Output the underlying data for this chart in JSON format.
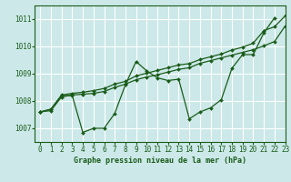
{
  "title": "Graphe pression niveau de la mer (hPa)",
  "xlim": [
    -0.5,
    23
  ],
  "ylim": [
    1006.5,
    1011.5
  ],
  "yticks": [
    1007,
    1008,
    1009,
    1010,
    1011
  ],
  "xticks": [
    0,
    1,
    2,
    3,
    4,
    5,
    6,
    7,
    8,
    9,
    10,
    11,
    12,
    13,
    14,
    15,
    16,
    17,
    18,
    19,
    20,
    21,
    22,
    23
  ],
  "bg_color": "#cce8e8",
  "grid_color": "#ffffff",
  "line_color": "#1a5c1a",
  "s1_x": [
    0,
    1,
    2,
    3,
    4,
    5,
    6,
    7,
    8,
    9,
    10,
    11,
    12,
    13,
    14,
    15,
    16,
    17,
    18,
    19,
    20,
    21,
    22
  ],
  "s1_y": [
    1007.6,
    1007.7,
    1008.2,
    1008.2,
    1006.85,
    1007.0,
    1007.0,
    1007.55,
    1008.6,
    1009.45,
    1009.1,
    1008.85,
    1008.75,
    1008.8,
    1007.35,
    1007.6,
    1007.75,
    1008.05,
    1009.2,
    1009.7,
    1009.7,
    1010.5,
    1011.05
  ],
  "s2_x": [
    0,
    1,
    2,
    3,
    4,
    5,
    6,
    7,
    8,
    9,
    10,
    11,
    12,
    13,
    14,
    15,
    16,
    17,
    18,
    19,
    20,
    21,
    22,
    23
  ],
  "s2_y": [
    1007.6,
    1007.65,
    1008.15,
    1008.22,
    1008.25,
    1008.28,
    1008.35,
    1008.5,
    1008.62,
    1008.78,
    1008.88,
    1008.96,
    1009.06,
    1009.16,
    1009.22,
    1009.38,
    1009.48,
    1009.58,
    1009.68,
    1009.78,
    1009.88,
    1010.02,
    1010.18,
    1010.75
  ],
  "s3_x": [
    0,
    1,
    2,
    3,
    4,
    5,
    6,
    7,
    8,
    9,
    10,
    11,
    12,
    13,
    14,
    15,
    16,
    17,
    18,
    19,
    20,
    21,
    22,
    23
  ],
  "s3_y": [
    1007.6,
    1007.7,
    1008.22,
    1008.28,
    1008.32,
    1008.38,
    1008.46,
    1008.62,
    1008.72,
    1008.92,
    1009.02,
    1009.12,
    1009.22,
    1009.32,
    1009.37,
    1009.52,
    1009.62,
    1009.72,
    1009.87,
    1009.97,
    1010.12,
    1010.58,
    1010.72,
    1011.12
  ],
  "marker": "D",
  "markersize": 2.0,
  "linewidth": 0.9,
  "font_color": "#1a5c1a",
  "tick_fontsize": 5.5,
  "xlabel_fontsize": 6.0
}
